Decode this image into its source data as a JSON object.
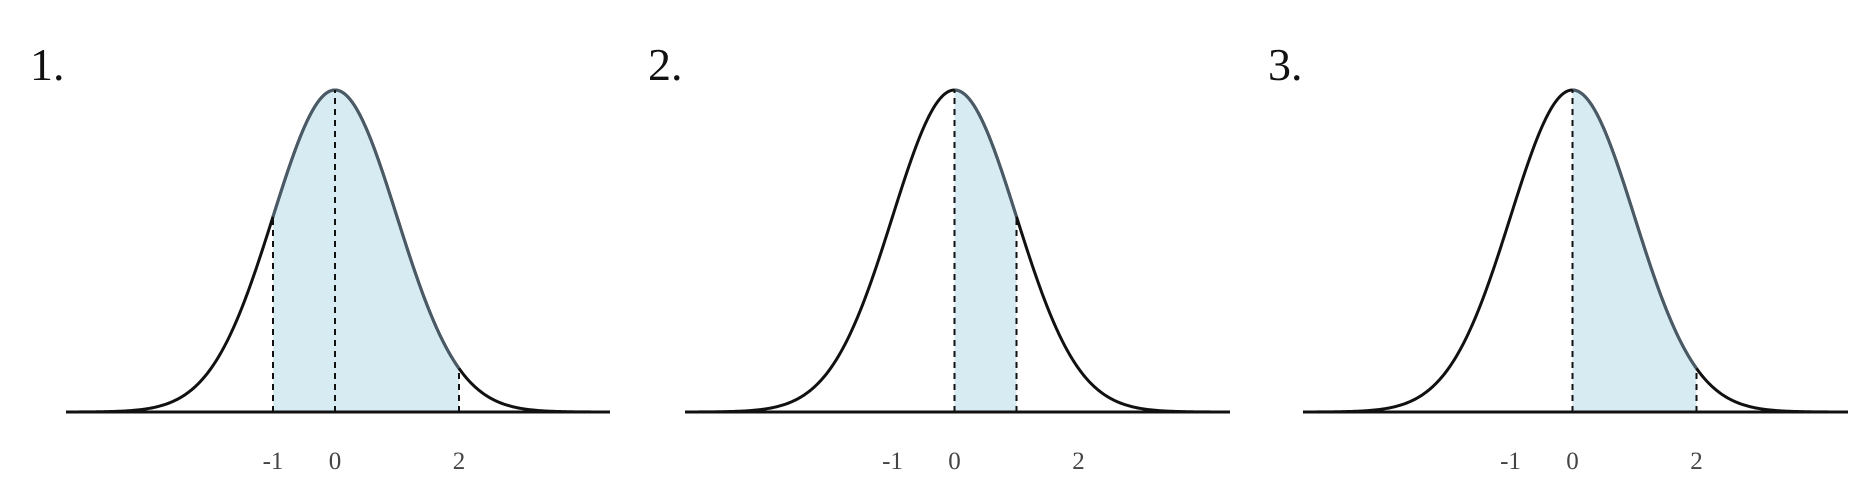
{
  "colors": {
    "curve": "#111111",
    "curve_shaded": "#4a5a66",
    "fill": "#d7ebf3",
    "axis": "#111111",
    "guide": "#111111"
  },
  "chart_data": [
    {
      "type": "area",
      "panel_label": "1.",
      "distribution": "standard normal",
      "xlim": [
        -4.2,
        4.2
      ],
      "tick_labels": [
        {
          "x": -1,
          "label": "-1"
        },
        {
          "x": 0,
          "label": "0"
        },
        {
          "x": 2,
          "label": "2"
        }
      ],
      "shaded_interval": [
        -1,
        2
      ],
      "dashed_lines_at": [
        -1,
        0,
        2
      ]
    },
    {
      "type": "area",
      "panel_label": "2.",
      "distribution": "standard normal",
      "xlim": [
        -4.2,
        4.2
      ],
      "tick_labels": [
        {
          "x": -1,
          "label": "-1"
        },
        {
          "x": 0,
          "label": "0"
        },
        {
          "x": 2,
          "label": "2"
        }
      ],
      "shaded_interval": [
        0,
        1
      ],
      "dashed_lines_at": [
        0,
        1
      ]
    },
    {
      "type": "area",
      "panel_label": "3.",
      "distribution": "standard normal",
      "xlim": [
        -4.2,
        4.2
      ],
      "tick_labels": [
        {
          "x": -1,
          "label": "-1"
        },
        {
          "x": 0,
          "label": "0"
        },
        {
          "x": 2,
          "label": "2"
        }
      ],
      "shaded_interval": [
        0,
        2
      ],
      "dashed_lines_at": [
        0,
        2
      ]
    }
  ]
}
